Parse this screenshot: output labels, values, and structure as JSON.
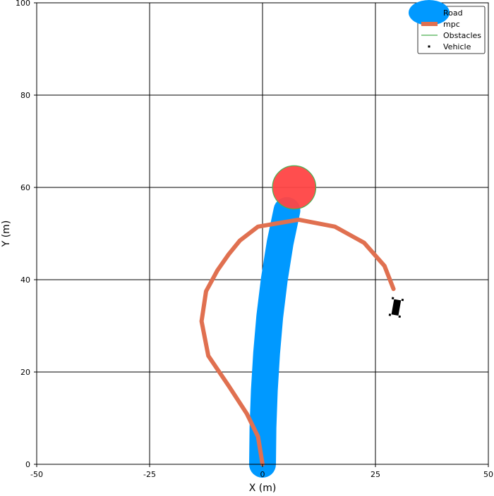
{
  "chart_data": {
    "type": "line",
    "title": "",
    "xlabel": "X (m)",
    "ylabel": "Y (m)",
    "xlim": [
      -50,
      50
    ],
    "ylim": [
      0,
      100
    ],
    "grid": true,
    "legend_position": "top-right",
    "x_ticks": [
      -50,
      -25,
      0,
      25,
      50
    ],
    "y_ticks": [
      0,
      20,
      40,
      60,
      80,
      100
    ],
    "x_tick_labels": [
      "-50",
      "-25",
      "0",
      "25",
      "50"
    ],
    "y_tick_labels": [
      "0",
      "20",
      "40",
      "60",
      "80",
      "100"
    ],
    "series": [
      {
        "name": "Road",
        "color": "#0099FF",
        "kind": "thick-line",
        "x": [
          0,
          0.1,
          0.4,
          0.9,
          1.6,
          2.6,
          3.9,
          5.4
        ],
        "y": [
          0,
          8,
          16,
          24,
          32,
          40,
          48,
          55
        ]
      },
      {
        "name": "mpc",
        "color": "#E07050",
        "kind": "line",
        "x": [
          0,
          -1,
          -3.5,
          -7.5,
          -12,
          -13.5,
          -12.5,
          -10,
          -7.5,
          -5,
          -1,
          8,
          16,
          22.5,
          27,
          29
        ],
        "y": [
          0,
          6,
          11,
          17,
          23.5,
          31,
          37.5,
          42,
          45.5,
          48.5,
          51.5,
          53,
          51.5,
          48,
          43,
          38
        ]
      },
      {
        "name": "Obstacles",
        "color": "#FF4444",
        "edge_color": "#4CAF50",
        "kind": "circle",
        "center": [
          7,
          60
        ],
        "radius": 4.8
      },
      {
        "name": "Vehicle",
        "color": "#000000",
        "kind": "marker",
        "x": 29.6,
        "y": 34,
        "heading_deg": -80
      }
    ]
  }
}
